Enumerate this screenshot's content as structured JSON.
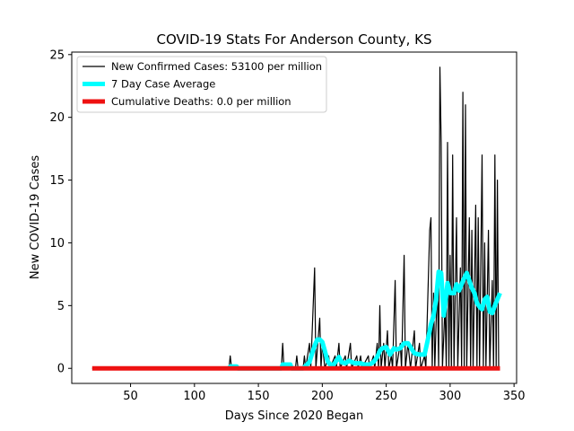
{
  "chart_data": {
    "type": "line",
    "title": "COVID-19 Stats For Anderson County, KS",
    "xlabel": "Days Since 2020 Began",
    "ylabel": "New COVID-19 Cases",
    "xlim": [
      4,
      352
    ],
    "ylim": [
      -1.2,
      25.2
    ],
    "xticks": [
      50,
      100,
      150,
      200,
      250,
      300,
      350
    ],
    "yticks": [
      0,
      5,
      10,
      15,
      20,
      25
    ],
    "grid": false,
    "legend_position": "top-left",
    "series": [
      {
        "name": "New Confirmed Cases: 53100 per million",
        "color": "#000000",
        "points": [
          [
            20,
            0
          ],
          [
            127,
            0
          ],
          [
            128,
            1
          ],
          [
            129,
            0
          ],
          [
            168,
            0
          ],
          [
            169,
            2
          ],
          [
            170,
            0
          ],
          [
            179,
            0
          ],
          [
            180,
            1
          ],
          [
            181,
            0
          ],
          [
            185,
            0
          ],
          [
            186,
            1
          ],
          [
            187,
            0
          ],
          [
            190,
            2
          ],
          [
            191,
            0
          ],
          [
            194,
            8
          ],
          [
            195,
            0
          ],
          [
            198,
            4
          ],
          [
            199,
            0
          ],
          [
            200,
            2
          ],
          [
            201,
            1
          ],
          [
            202,
            0
          ],
          [
            205,
            1
          ],
          [
            206,
            0
          ],
          [
            210,
            1
          ],
          [
            211,
            0
          ],
          [
            213,
            2
          ],
          [
            214,
            0
          ],
          [
            218,
            1
          ],
          [
            219,
            0
          ],
          [
            222,
            2
          ],
          [
            223,
            0
          ],
          [
            227,
            1
          ],
          [
            228,
            0
          ],
          [
            230,
            1
          ],
          [
            231,
            0
          ],
          [
            236,
            1
          ],
          [
            237,
            0
          ],
          [
            240,
            1
          ],
          [
            241,
            0
          ],
          [
            243,
            2
          ],
          [
            244,
            0
          ],
          [
            245,
            5
          ],
          [
            246,
            0
          ],
          [
            248,
            2
          ],
          [
            249,
            0
          ],
          [
            251,
            3
          ],
          [
            252,
            0
          ],
          [
            254,
            1
          ],
          [
            255,
            0
          ],
          [
            257,
            7
          ],
          [
            258,
            0
          ],
          [
            261,
            2
          ],
          [
            262,
            0
          ],
          [
            264,
            9
          ],
          [
            265,
            0
          ],
          [
            267,
            2
          ],
          [
            268,
            1
          ],
          [
            269,
            0
          ],
          [
            272,
            3
          ],
          [
            273,
            0
          ],
          [
            276,
            2
          ],
          [
            277,
            0
          ],
          [
            280,
            1
          ],
          [
            281,
            0
          ],
          [
            284,
            11
          ],
          [
            285,
            12
          ],
          [
            286,
            0
          ],
          [
            287,
            6
          ],
          [
            288,
            0
          ],
          [
            290,
            7
          ],
          [
            291,
            0
          ],
          [
            292,
            24
          ],
          [
            293,
            18
          ],
          [
            294,
            0
          ],
          [
            296,
            5
          ],
          [
            297,
            0
          ],
          [
            298,
            18
          ],
          [
            299,
            0
          ],
          [
            300,
            9
          ],
          [
            301,
            0
          ],
          [
            302,
            17
          ],
          [
            303,
            0
          ],
          [
            305,
            12
          ],
          [
            306,
            0
          ],
          [
            308,
            8
          ],
          [
            309,
            0
          ],
          [
            310,
            22
          ],
          [
            311,
            0
          ],
          [
            312,
            21
          ],
          [
            313,
            0
          ],
          [
            315,
            12
          ],
          [
            316,
            0
          ],
          [
            317,
            11
          ],
          [
            318,
            0
          ],
          [
            320,
            13
          ],
          [
            321,
            0
          ],
          [
            322,
            12
          ],
          [
            323,
            0
          ],
          [
            325,
            17
          ],
          [
            326,
            0
          ],
          [
            327,
            10
          ],
          [
            328,
            0
          ],
          [
            330,
            11
          ],
          [
            331,
            0
          ],
          [
            333,
            7
          ],
          [
            334,
            0
          ],
          [
            335,
            17
          ],
          [
            336,
            0
          ],
          [
            337,
            15
          ],
          [
            338,
            0
          ],
          [
            339,
            0
          ]
        ]
      },
      {
        "name": "7 Day Case Average",
        "color": "#00ffff",
        "points": [
          [
            127,
            0
          ],
          [
            128,
            0.15
          ],
          [
            133,
            0.15
          ],
          [
            134,
            0
          ],
          [
            168,
            0
          ],
          [
            169,
            0.3
          ],
          [
            175,
            0.3
          ],
          [
            176,
            0
          ],
          [
            185,
            0
          ],
          [
            188,
            0.3
          ],
          [
            190,
            0.5
          ],
          [
            192,
            1.2
          ],
          [
            194,
            1.8
          ],
          [
            196,
            2.3
          ],
          [
            198,
            2.3
          ],
          [
            200,
            2.1
          ],
          [
            202,
            1.4
          ],
          [
            204,
            0.6
          ],
          [
            206,
            0.3
          ],
          [
            209,
            0.3
          ],
          [
            211,
            0.6
          ],
          [
            213,
            0.9
          ],
          [
            215,
            0.5
          ],
          [
            218,
            0.4
          ],
          [
            221,
            0.6
          ],
          [
            223,
            0.5
          ],
          [
            226,
            0.4
          ],
          [
            230,
            0.4
          ],
          [
            233,
            0.3
          ],
          [
            237,
            0.3
          ],
          [
            240,
            0.5
          ],
          [
            243,
            0.9
          ],
          [
            245,
            1.4
          ],
          [
            247,
            1.6
          ],
          [
            250,
            1.7
          ],
          [
            253,
            1.1
          ],
          [
            256,
            1.6
          ],
          [
            258,
            1.5
          ],
          [
            261,
            1.6
          ],
          [
            264,
            2.0
          ],
          [
            267,
            2.0
          ],
          [
            269,
            1.7
          ],
          [
            272,
            1.2
          ],
          [
            276,
            1.1
          ],
          [
            280,
            1.1
          ],
          [
            283,
            2.5
          ],
          [
            285,
            3.5
          ],
          [
            287,
            4.2
          ],
          [
            289,
            5.5
          ],
          [
            291,
            7.7
          ],
          [
            293,
            7.6
          ],
          [
            295,
            4.2
          ],
          [
            296,
            5.0
          ],
          [
            298,
            6.8
          ],
          [
            300,
            6.0
          ],
          [
            303,
            6.0
          ],
          [
            305,
            6.7
          ],
          [
            307,
            6.2
          ],
          [
            309,
            6.7
          ],
          [
            311,
            7.2
          ],
          [
            313,
            7.6
          ],
          [
            315,
            7.0
          ],
          [
            317,
            6.4
          ],
          [
            319,
            6.0
          ],
          [
            321,
            5.2
          ],
          [
            323,
            4.9
          ],
          [
            325,
            4.7
          ],
          [
            327,
            5.5
          ],
          [
            329,
            5.7
          ],
          [
            331,
            4.5
          ],
          [
            333,
            4.4
          ],
          [
            335,
            5.0
          ],
          [
            337,
            5.5
          ],
          [
            339,
            6.0
          ]
        ]
      },
      {
        "name": "Cumulative Deaths: 0.0 per million",
        "color": "#ee1111",
        "points": [
          [
            20,
            0
          ],
          [
            339,
            0
          ]
        ]
      }
    ]
  }
}
